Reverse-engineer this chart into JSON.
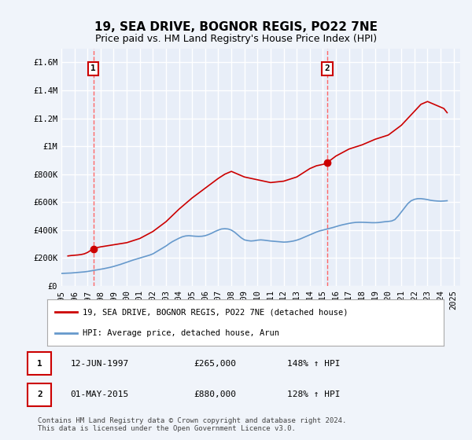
{
  "title": "19, SEA DRIVE, BOGNOR REGIS, PO22 7NE",
  "subtitle": "Price paid vs. HM Land Registry's House Price Index (HPI)",
  "ylim": [
    0,
    1700000
  ],
  "xlim_start": 1995.0,
  "xlim_end": 2025.5,
  "yticks": [
    0,
    200000,
    400000,
    600000,
    800000,
    1000000,
    1200000,
    1400000,
    1600000
  ],
  "ytick_labels": [
    "£0",
    "£200K",
    "£400K",
    "£600K",
    "£800K",
    "£1M",
    "£1.2M",
    "£1.4M",
    "£1.6M"
  ],
  "xticks": [
    1995,
    1996,
    1997,
    1998,
    1999,
    2000,
    2001,
    2002,
    2003,
    2004,
    2005,
    2006,
    2007,
    2008,
    2009,
    2010,
    2011,
    2012,
    2013,
    2014,
    2015,
    2016,
    2017,
    2018,
    2019,
    2020,
    2021,
    2022,
    2023,
    2024,
    2025
  ],
  "background_color": "#f0f4fa",
  "plot_bg_color": "#e8eef8",
  "grid_color": "#ffffff",
  "line1_color": "#cc0000",
  "line2_color": "#6699cc",
  "marker_color": "#cc0000",
  "dashed_line_color": "#ff6666",
  "sale1_x": 1997.44,
  "sale1_y": 265000,
  "sale2_x": 2015.33,
  "sale2_y": 880000,
  "legend_label1": "19, SEA DRIVE, BOGNOR REGIS, PO22 7NE (detached house)",
  "legend_label2": "HPI: Average price, detached house, Arun",
  "annotation1_label": "1",
  "annotation2_label": "2",
  "table_row1": [
    "1",
    "12-JUN-1997",
    "£265,000",
    "148% ↑ HPI"
  ],
  "table_row2": [
    "2",
    "01-MAY-2015",
    "£880,000",
    "128% ↑ HPI"
  ],
  "footer": "Contains HM Land Registry data © Crown copyright and database right 2024.\nThis data is licensed under the Open Government Licence v3.0.",
  "title_fontsize": 11,
  "subtitle_fontsize": 9,
  "tick_fontsize": 7.5,
  "hpi_line_data_x": [
    1995.0,
    1995.25,
    1995.5,
    1995.75,
    1996.0,
    1996.25,
    1996.5,
    1996.75,
    1997.0,
    1997.25,
    1997.5,
    1997.75,
    1998.0,
    1998.25,
    1998.5,
    1998.75,
    1999.0,
    1999.25,
    1999.5,
    1999.75,
    2000.0,
    2000.25,
    2000.5,
    2000.75,
    2001.0,
    2001.25,
    2001.5,
    2001.75,
    2002.0,
    2002.25,
    2002.5,
    2002.75,
    2003.0,
    2003.25,
    2003.5,
    2003.75,
    2004.0,
    2004.25,
    2004.5,
    2004.75,
    2005.0,
    2005.25,
    2005.5,
    2005.75,
    2006.0,
    2006.25,
    2006.5,
    2006.75,
    2007.0,
    2007.25,
    2007.5,
    2007.75,
    2008.0,
    2008.25,
    2008.5,
    2008.75,
    2009.0,
    2009.25,
    2009.5,
    2009.75,
    2010.0,
    2010.25,
    2010.5,
    2010.75,
    2011.0,
    2011.25,
    2011.5,
    2011.75,
    2012.0,
    2012.25,
    2012.5,
    2012.75,
    2013.0,
    2013.25,
    2013.5,
    2013.75,
    2014.0,
    2014.25,
    2014.5,
    2014.75,
    2015.0,
    2015.25,
    2015.5,
    2015.75,
    2016.0,
    2016.25,
    2016.5,
    2016.75,
    2017.0,
    2017.25,
    2017.5,
    2017.75,
    2018.0,
    2018.25,
    2018.5,
    2018.75,
    2019.0,
    2019.25,
    2019.5,
    2019.75,
    2020.0,
    2020.25,
    2020.5,
    2020.75,
    2021.0,
    2021.25,
    2021.5,
    2021.75,
    2022.0,
    2022.25,
    2022.5,
    2022.75,
    2023.0,
    2023.25,
    2023.5,
    2023.75,
    2024.0,
    2024.25,
    2024.5
  ],
  "hpi_line_data_y": [
    90000,
    91000,
    92000,
    93000,
    95000,
    97000,
    99000,
    101000,
    104000,
    108000,
    112000,
    116000,
    120000,
    124000,
    129000,
    134000,
    140000,
    147000,
    154000,
    162000,
    170000,
    178000,
    186000,
    193000,
    200000,
    207000,
    214000,
    221000,
    230000,
    244000,
    258000,
    272000,
    286000,
    303000,
    318000,
    330000,
    342000,
    352000,
    358000,
    360000,
    358000,
    356000,
    355000,
    356000,
    360000,
    368000,
    378000,
    390000,
    400000,
    408000,
    410000,
    408000,
    400000,
    385000,
    365000,
    345000,
    330000,
    325000,
    322000,
    324000,
    328000,
    330000,
    328000,
    325000,
    322000,
    320000,
    318000,
    316000,
    314000,
    315000,
    318000,
    322000,
    328000,
    336000,
    346000,
    356000,
    366000,
    376000,
    386000,
    394000,
    400000,
    406000,
    412000,
    418000,
    425000,
    432000,
    438000,
    443000,
    448000,
    452000,
    455000,
    456000,
    456000,
    455000,
    454000,
    453000,
    453000,
    454000,
    457000,
    460000,
    462000,
    465000,
    475000,
    500000,
    530000,
    560000,
    590000,
    610000,
    620000,
    625000,
    625000,
    622000,
    618000,
    613000,
    610000,
    608000,
    607000,
    608000,
    610000
  ],
  "price_line_data_x": [
    1995.5,
    1995.75,
    1996.0,
    1996.25,
    1996.5,
    1996.75,
    1997.0,
    1997.25,
    1997.44,
    1997.5,
    1998.0,
    1999.0,
    2000.0,
    2001.0,
    2002.0,
    2003.0,
    2004.0,
    2005.0,
    2006.0,
    2007.0,
    2007.5,
    2008.0,
    2009.0,
    2010.0,
    2011.0,
    2012.0,
    2013.0,
    2014.0,
    2014.5,
    2015.0,
    2015.33,
    2015.5,
    2016.0,
    2017.0,
    2018.0,
    2019.0,
    2020.0,
    2021.0,
    2022.0,
    2022.5,
    2023.0,
    2023.5,
    2024.0,
    2024.25,
    2024.5
  ],
  "price_line_data_y": [
    215000,
    218000,
    220000,
    222000,
    225000,
    230000,
    240000,
    255000,
    265000,
    270000,
    280000,
    295000,
    310000,
    340000,
    390000,
    460000,
    550000,
    630000,
    700000,
    770000,
    800000,
    820000,
    780000,
    760000,
    740000,
    750000,
    780000,
    840000,
    860000,
    870000,
    880000,
    895000,
    930000,
    980000,
    1010000,
    1050000,
    1080000,
    1150000,
    1250000,
    1300000,
    1320000,
    1300000,
    1280000,
    1270000,
    1240000
  ]
}
